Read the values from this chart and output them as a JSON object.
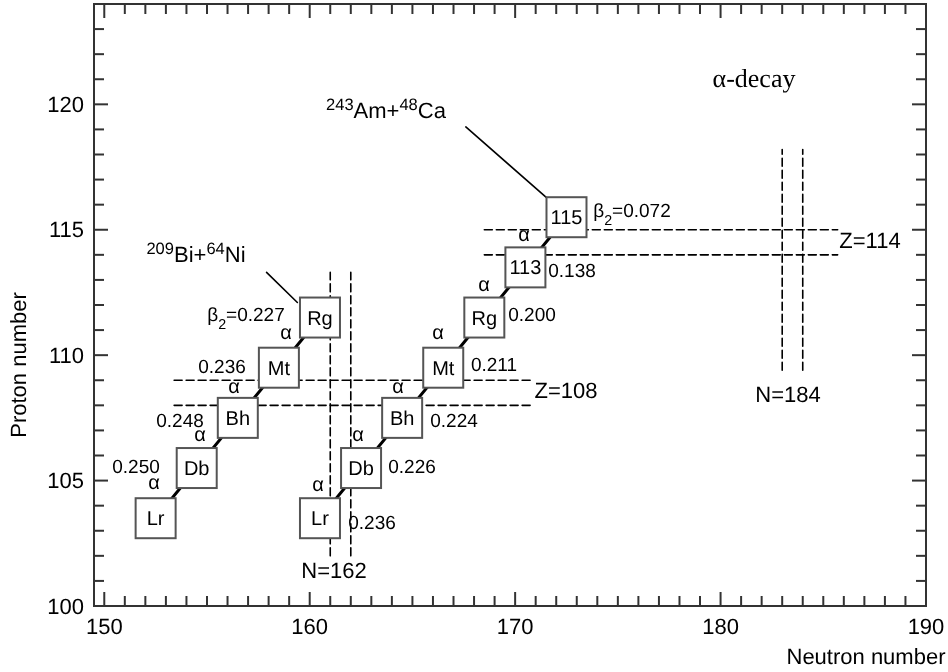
{
  "chart_data": {
    "type": "line",
    "xlabel": "Neutron number",
    "ylabel": "Proton number",
    "xlim": [
      149.5,
      190
    ],
    "ylim": [
      100,
      124
    ],
    "xticks": [
      {
        "value": 149.5,
        "label": null
      },
      150,
      {
        "value": 151,
        "label": null
      },
      {
        "value": 152,
        "label": null
      },
      {
        "value": 153,
        "label": null
      },
      {
        "value": 154,
        "label": null
      },
      {
        "value": 155,
        "label": null
      },
      {
        "value": 156,
        "label": null
      },
      {
        "value": 157,
        "label": null
      },
      {
        "value": 158,
        "label": null
      },
      {
        "value": 159,
        "label": null
      },
      160,
      {
        "value": 161,
        "label": null
      },
      {
        "value": 162,
        "label": null
      },
      {
        "value": 163,
        "label": null
      },
      {
        "value": 164,
        "label": null
      },
      {
        "value": 165,
        "label": null
      },
      {
        "value": 166,
        "label": null
      },
      {
        "value": 167,
        "label": null
      },
      {
        "value": 168,
        "label": null
      },
      {
        "value": 169,
        "label": null
      },
      170,
      {
        "value": 171,
        "label": null
      },
      {
        "value": 172,
        "label": null
      },
      {
        "value": 173,
        "label": null
      },
      {
        "value": 174,
        "label": null
      },
      {
        "value": 175,
        "label": null
      },
      {
        "value": 176,
        "label": null
      },
      {
        "value": 177,
        "label": null
      },
      {
        "value": 178,
        "label": null
      },
      {
        "value": 179,
        "label": null
      },
      180,
      {
        "value": 181,
        "label": null
      },
      {
        "value": 182,
        "label": null
      },
      {
        "value": 183,
        "label": null
      },
      {
        "value": 184,
        "label": null
      },
      {
        "value": 185,
        "label": null
      },
      {
        "value": 186,
        "label": null
      },
      {
        "value": 187,
        "label": null
      },
      {
        "value": 188,
        "label": null
      },
      {
        "value": 189,
        "label": null
      },
      190
    ],
    "yticks": [
      100,
      {
        "value": 101,
        "label": null
      },
      {
        "value": 102,
        "label": null
      },
      {
        "value": 103,
        "label": null
      },
      {
        "value": 104,
        "label": null
      },
      105,
      {
        "value": 106,
        "label": null
      },
      {
        "value": 107,
        "label": null
      },
      {
        "value": 108,
        "label": null
      },
      {
        "value": 109,
        "label": null
      },
      110,
      {
        "value": 111,
        "label": null
      },
      {
        "value": 112,
        "label": null
      },
      {
        "value": 113,
        "label": null
      },
      {
        "value": 114,
        "label": null
      },
      115,
      {
        "value": 116,
        "label": null
      },
      {
        "value": 117,
        "label": null
      },
      {
        "value": 118,
        "label": null
      },
      {
        "value": 119,
        "label": null
      },
      120,
      {
        "value": 121,
        "label": null
      },
      {
        "value": 122,
        "label": null
      },
      {
        "value": 123,
        "label": null
      },
      {
        "value": 124,
        "label": null
      }
    ],
    "grid": false,
    "series": [
      {
        "marker": "square",
        "color": "#000000",
        "x": [
          152.5,
          154.5,
          156.5,
          158.5,
          160.5
        ],
        "values": [
          103.5,
          105.5,
          107.5,
          109.5,
          111.5
        ]
      },
      {
        "marker": "square",
        "color": "#000000",
        "x": [
          160.5,
          162.5,
          164.5,
          166.5,
          168.5,
          170.5,
          172.5
        ],
        "values": [
          103.5,
          105.5,
          107.5,
          109.5,
          111.5,
          113.5,
          115.5
        ]
      },
      {
        "line_style": "dashed",
        "color": "#000000",
        "x": [
          168.5,
          185.7
        ],
        "values": [
          115,
          115
        ]
      },
      {
        "line_style": "dashed",
        "color": "#000000",
        "x": [
          168.5,
          185.7
        ],
        "values": [
          114,
          114
        ]
      },
      {
        "line_style": "dashed",
        "color": "#000000",
        "x": [
          153.4,
          170.9
        ],
        "values": [
          109,
          109
        ]
      },
      {
        "line_style": "dashed",
        "color": "#000000",
        "x": [
          153.4,
          170.9
        ],
        "values": [
          108,
          108
        ]
      },
      {
        "line_style": "dashed",
        "color": "#000000",
        "x": [
          161,
          161
        ],
        "values": [
          102,
          113.3
        ]
      },
      {
        "line_style": "dashed",
        "color": "#000000",
        "x": [
          162,
          162
        ],
        "values": [
          102,
          113.3
        ]
      },
      {
        "line_style": "dashed",
        "color": "#000000",
        "x": [
          183,
          183
        ],
        "values": [
          109.4,
          118.2
        ]
      },
      {
        "line_style": "dashed",
        "color": "#000000",
        "x": [
          184,
          184
        ],
        "values": [
          109.4,
          118.2
        ]
      },
      {
        "color": "#000000",
        "x": [
          167.6,
          171.5
        ],
        "values": [
          119.1,
          116.3
        ]
      },
      {
        "color": "#000000",
        "x": [
          157.9,
          159.4
        ],
        "values": [
          113.3,
          112.1
        ]
      }
    ],
    "annotations": [
      "α-decay",
      {
        "text": "Lr",
        "x": 152.5,
        "y": 103.5
      },
      {
        "text": "Db",
        "x": 154.5,
        "y": 105.5
      },
      {
        "text": "Bh",
        "x": 156.5,
        "y": 107.5
      },
      {
        "text": "Mt",
        "x": 158.5,
        "y": 109.5
      },
      {
        "text": "Rg",
        "x": 160.5,
        "y": 111.5
      },
      {
        "text": "Lr",
        "x": 160.5,
        "y": 103.5
      },
      {
        "text": "Db",
        "x": 162.5,
        "y": 105.5
      },
      {
        "text": "Bh",
        "x": 164.5,
        "y": 107.5
      },
      {
        "text": "Mt",
        "x": 166.5,
        "y": 109.5
      },
      {
        "text": "Rg",
        "x": 168.5,
        "y": 111.5
      },
      {
        "text": "113",
        "x": 170.5,
        "y": 113.5
      },
      {
        "text": "115",
        "x": 172.5,
        "y": 115.5
      },
      "α",
      "α",
      "α",
      "α",
      "α",
      "α",
      "α",
      "α",
      "α",
      "α",
      "β$_{2}$=0.227",
      "0.236",
      "0.248",
      "0.250",
      "β$_{2}$=0.072",
      "0.138",
      "0.200",
      "0.211",
      "0.224",
      "0.226",
      "0.236",
      "Z=114",
      "Z=108",
      "N=162",
      "N=184",
      "$^{243}$Am+$^{48}$Ca",
      "$^{209}$Bi+$^{64}$Ni"
    ]
  }
}
